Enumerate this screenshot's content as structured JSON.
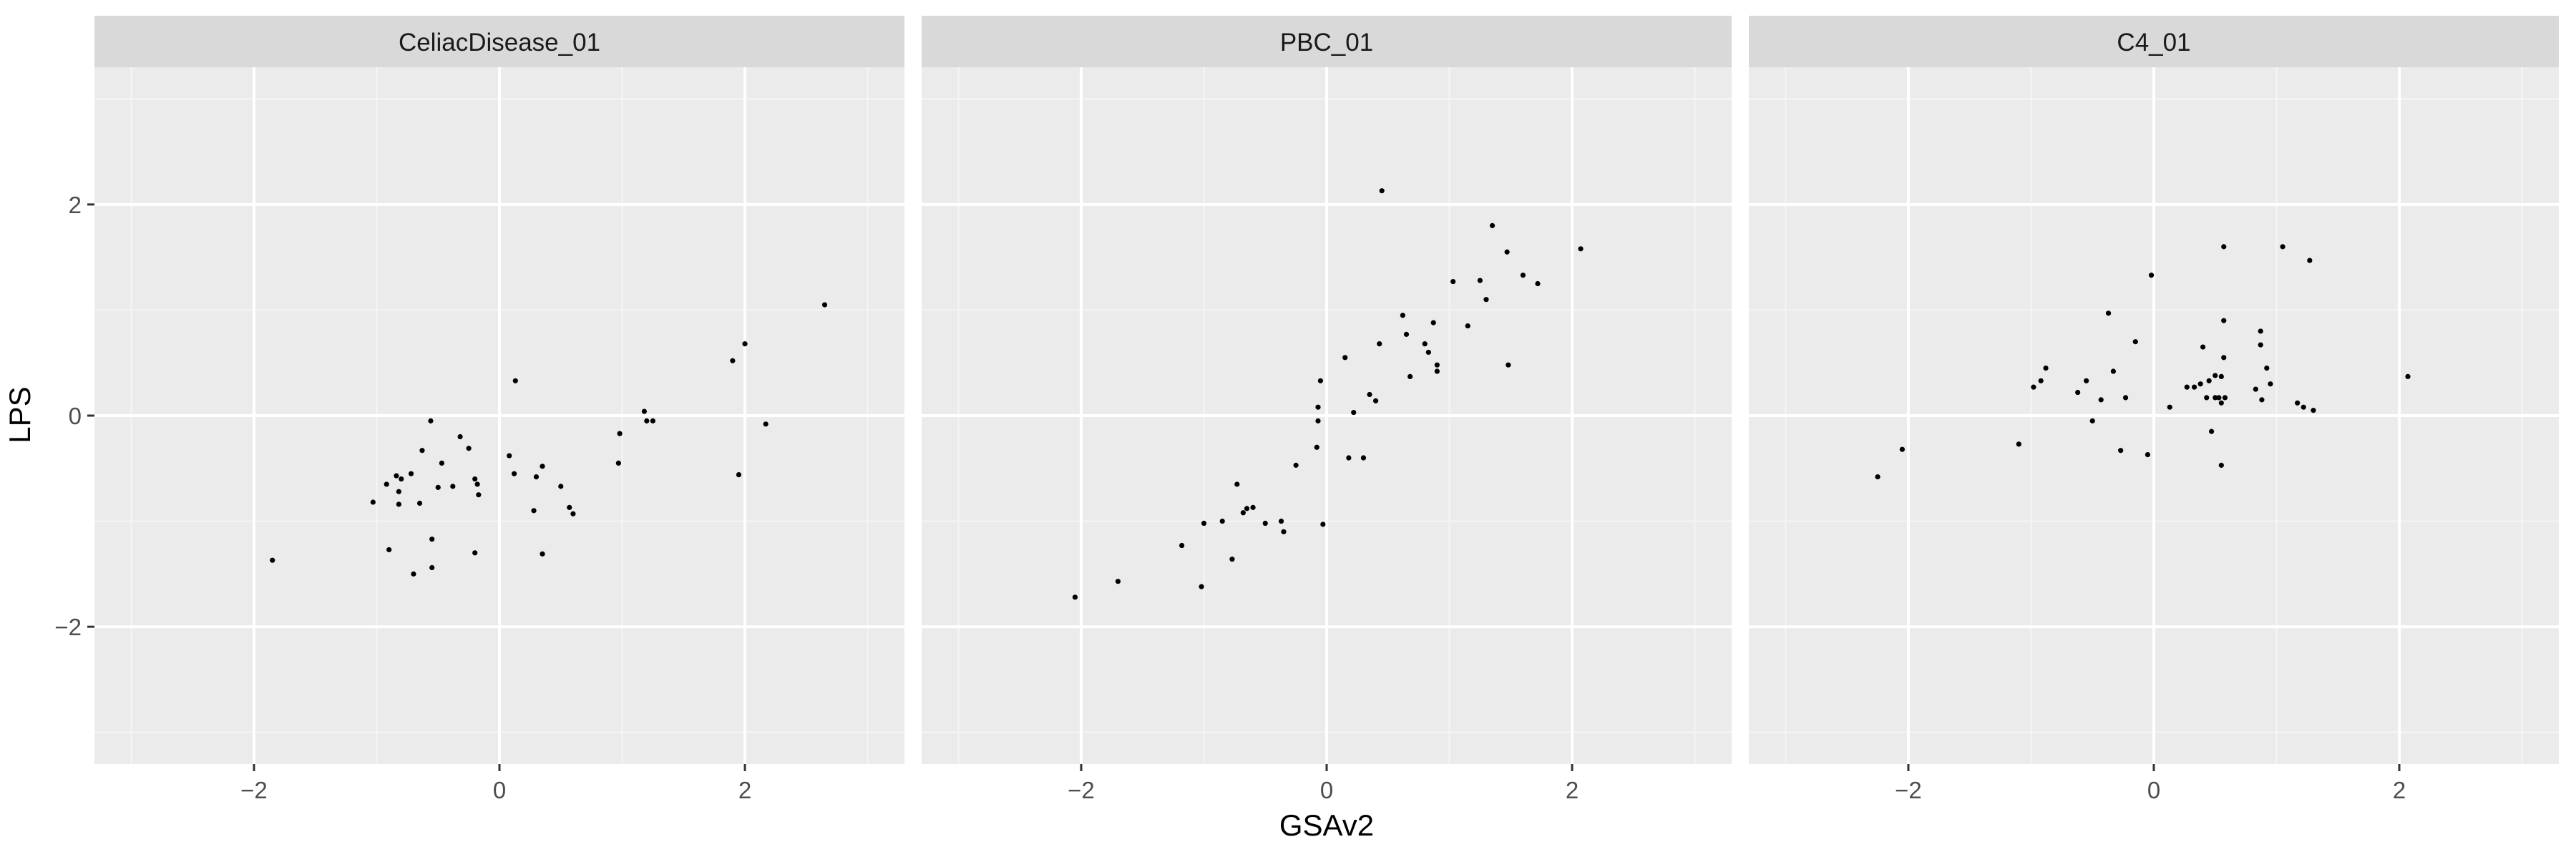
{
  "chart_data": {
    "type": "scatter",
    "facets": true,
    "xlabel": "GSAv2",
    "ylabel": "LPS",
    "xlim": [
      -3.3,
      3.3
    ],
    "ylim": [
      -3.3,
      3.3
    ],
    "x_ticks": [
      -2,
      0,
      2
    ],
    "y_ticks": [
      -2,
      0,
      2
    ],
    "grid": true,
    "colors": {
      "panel_bg": "#ebebeb",
      "strip_bg": "#d9d9d9",
      "grid_major": "#ffffff",
      "grid_minor": "#f5f5f5",
      "point": "#000000",
      "text": "#4d4d4d",
      "title_text": "#1a1a1a"
    },
    "panels": [
      {
        "title": "CeliacDisease_01",
        "points": [
          [
            -1.85,
            -1.37
          ],
          [
            -1.03,
            -0.82
          ],
          [
            -0.92,
            -0.65
          ],
          [
            -0.9,
            -1.27
          ],
          [
            -0.84,
            -0.57
          ],
          [
            -0.82,
            -0.72
          ],
          [
            -0.82,
            -0.84
          ],
          [
            -0.8,
            -0.6
          ],
          [
            -0.72,
            -0.55
          ],
          [
            -0.7,
            -1.5
          ],
          [
            -0.65,
            -0.83
          ],
          [
            -0.63,
            -0.33
          ],
          [
            -0.56,
            -0.05
          ],
          [
            -0.55,
            -1.17
          ],
          [
            -0.55,
            -1.44
          ],
          [
            -0.5,
            -0.68
          ],
          [
            -0.47,
            -0.45
          ],
          [
            -0.38,
            -0.67
          ],
          [
            -0.32,
            -0.2
          ],
          [
            -0.25,
            -0.31
          ],
          [
            -0.2,
            -0.6
          ],
          [
            -0.2,
            -1.3
          ],
          [
            -0.18,
            -0.65
          ],
          [
            -0.17,
            -0.75
          ],
          [
            0.08,
            -0.38
          ],
          [
            0.12,
            -0.55
          ],
          [
            0.13,
            0.33
          ],
          [
            0.28,
            -0.9
          ],
          [
            0.3,
            -0.58
          ],
          [
            0.35,
            -0.48
          ],
          [
            0.35,
            -1.31
          ],
          [
            0.5,
            -0.67
          ],
          [
            0.57,
            -0.87
          ],
          [
            0.6,
            -0.93
          ],
          [
            0.97,
            -0.45
          ],
          [
            0.98,
            -0.17
          ],
          [
            1.18,
            0.04
          ],
          [
            1.2,
            -0.05
          ],
          [
            1.25,
            -0.05
          ],
          [
            1.9,
            0.52
          ],
          [
            1.95,
            -0.56
          ],
          [
            2.0,
            0.68
          ],
          [
            2.17,
            -0.08
          ],
          [
            2.65,
            1.05
          ]
        ]
      },
      {
        "title": "PBC_01",
        "points": [
          [
            -2.05,
            -1.72
          ],
          [
            -1.7,
            -1.57
          ],
          [
            -1.18,
            -1.23
          ],
          [
            -1.02,
            -1.62
          ],
          [
            -1.0,
            -1.02
          ],
          [
            -0.85,
            -1.0
          ],
          [
            -0.77,
            -1.36
          ],
          [
            -0.73,
            -0.65
          ],
          [
            -0.68,
            -0.92
          ],
          [
            -0.65,
            -0.88
          ],
          [
            -0.6,
            -0.87
          ],
          [
            -0.5,
            -1.02
          ],
          [
            -0.37,
            -1.0
          ],
          [
            -0.35,
            -1.1
          ],
          [
            -0.25,
            -0.47
          ],
          [
            -0.08,
            -0.3
          ],
          [
            -0.07,
            0.08
          ],
          [
            -0.07,
            -0.05
          ],
          [
            -0.05,
            0.33
          ],
          [
            -0.03,
            -1.03
          ],
          [
            0.15,
            0.55
          ],
          [
            0.18,
            -0.4
          ],
          [
            0.22,
            0.03
          ],
          [
            0.3,
            -0.4
          ],
          [
            0.35,
            0.2
          ],
          [
            0.4,
            0.14
          ],
          [
            0.43,
            0.68
          ],
          [
            0.45,
            2.13
          ],
          [
            0.62,
            0.95
          ],
          [
            0.65,
            0.77
          ],
          [
            0.68,
            0.37
          ],
          [
            0.8,
            0.68
          ],
          [
            0.83,
            0.6
          ],
          [
            0.87,
            0.88
          ],
          [
            0.9,
            0.48
          ],
          [
            0.9,
            0.42
          ],
          [
            1.03,
            1.27
          ],
          [
            1.15,
            0.85
          ],
          [
            1.25,
            1.28
          ],
          [
            1.3,
            1.1
          ],
          [
            1.35,
            1.8
          ],
          [
            1.47,
            1.55
          ],
          [
            1.48,
            0.48
          ],
          [
            1.6,
            1.33
          ],
          [
            1.72,
            1.25
          ],
          [
            2.07,
            1.58
          ]
        ]
      },
      {
        "title": "C4_01",
        "points": [
          [
            -2.25,
            -0.58
          ],
          [
            -2.05,
            -0.32
          ],
          [
            -1.1,
            -0.27
          ],
          [
            -0.98,
            0.27
          ],
          [
            -0.92,
            0.33
          ],
          [
            -0.88,
            0.45
          ],
          [
            -0.62,
            0.22
          ],
          [
            -0.55,
            0.33
          ],
          [
            -0.5,
            -0.05
          ],
          [
            -0.43,
            0.15
          ],
          [
            -0.37,
            0.97
          ],
          [
            -0.33,
            0.42
          ],
          [
            -0.27,
            -0.33
          ],
          [
            -0.23,
            0.17
          ],
          [
            -0.15,
            0.7
          ],
          [
            -0.05,
            -0.37
          ],
          [
            -0.02,
            1.33
          ],
          [
            0.13,
            0.08
          ],
          [
            0.27,
            0.27
          ],
          [
            0.33,
            0.27
          ],
          [
            0.38,
            0.3
          ],
          [
            0.4,
            0.65
          ],
          [
            0.43,
            0.17
          ],
          [
            0.45,
            0.33
          ],
          [
            0.47,
            -0.15
          ],
          [
            0.5,
            0.38
          ],
          [
            0.5,
            0.17
          ],
          [
            0.53,
            0.17
          ],
          [
            0.55,
            0.37
          ],
          [
            0.55,
            0.12
          ],
          [
            0.57,
            1.6
          ],
          [
            0.57,
            0.55
          ],
          [
            0.57,
            0.9
          ],
          [
            0.58,
            0.17
          ],
          [
            0.55,
            -0.47
          ],
          [
            0.83,
            0.25
          ],
          [
            0.87,
            0.8
          ],
          [
            0.87,
            0.67
          ],
          [
            0.88,
            0.15
          ],
          [
            0.92,
            0.45
          ],
          [
            0.95,
            0.3
          ],
          [
            1.05,
            1.6
          ],
          [
            1.17,
            0.12
          ],
          [
            1.22,
            0.08
          ],
          [
            1.27,
            1.47
          ],
          [
            1.3,
            0.05
          ],
          [
            2.07,
            0.37
          ]
        ]
      }
    ]
  }
}
